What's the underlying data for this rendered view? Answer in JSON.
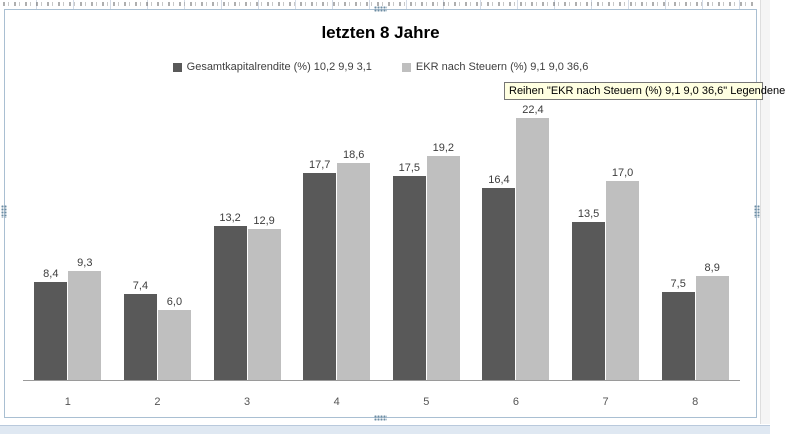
{
  "tooltip": {
    "text": "Reihen \"EKR nach Steuern (%)  9,1 9,0 36,6\" Legendene"
  },
  "chart_data": {
    "type": "bar",
    "title": "letzten 8 Jahre",
    "categories": [
      "1",
      "2",
      "3",
      "4",
      "5",
      "6",
      "7",
      "8"
    ],
    "series": [
      {
        "name": "Gesamtkapitalrendite (%) 10,2 9,9 3,1",
        "color": "#595959",
        "values": [
          8.4,
          7.4,
          13.2,
          17.7,
          17.5,
          16.4,
          13.5,
          7.5
        ],
        "labels": [
          "8,4",
          "7,4",
          "13,2",
          "17,7",
          "17,5",
          "16,4",
          "13,5",
          "7,5"
        ]
      },
      {
        "name": "EKR nach Steuern (%)  9,1 9,0 36,6",
        "color": "#bfbfbf",
        "values": [
          9.3,
          6.0,
          12.9,
          18.6,
          19.2,
          22.4,
          17.0,
          8.9
        ],
        "labels": [
          "9,3",
          "6,0",
          "12,9",
          "18,6",
          "19,2",
          "22,4",
          "17,0",
          "8,9"
        ]
      }
    ],
    "ylim": [
      0,
      25
    ],
    "grid": false,
    "legend_position": "top"
  }
}
